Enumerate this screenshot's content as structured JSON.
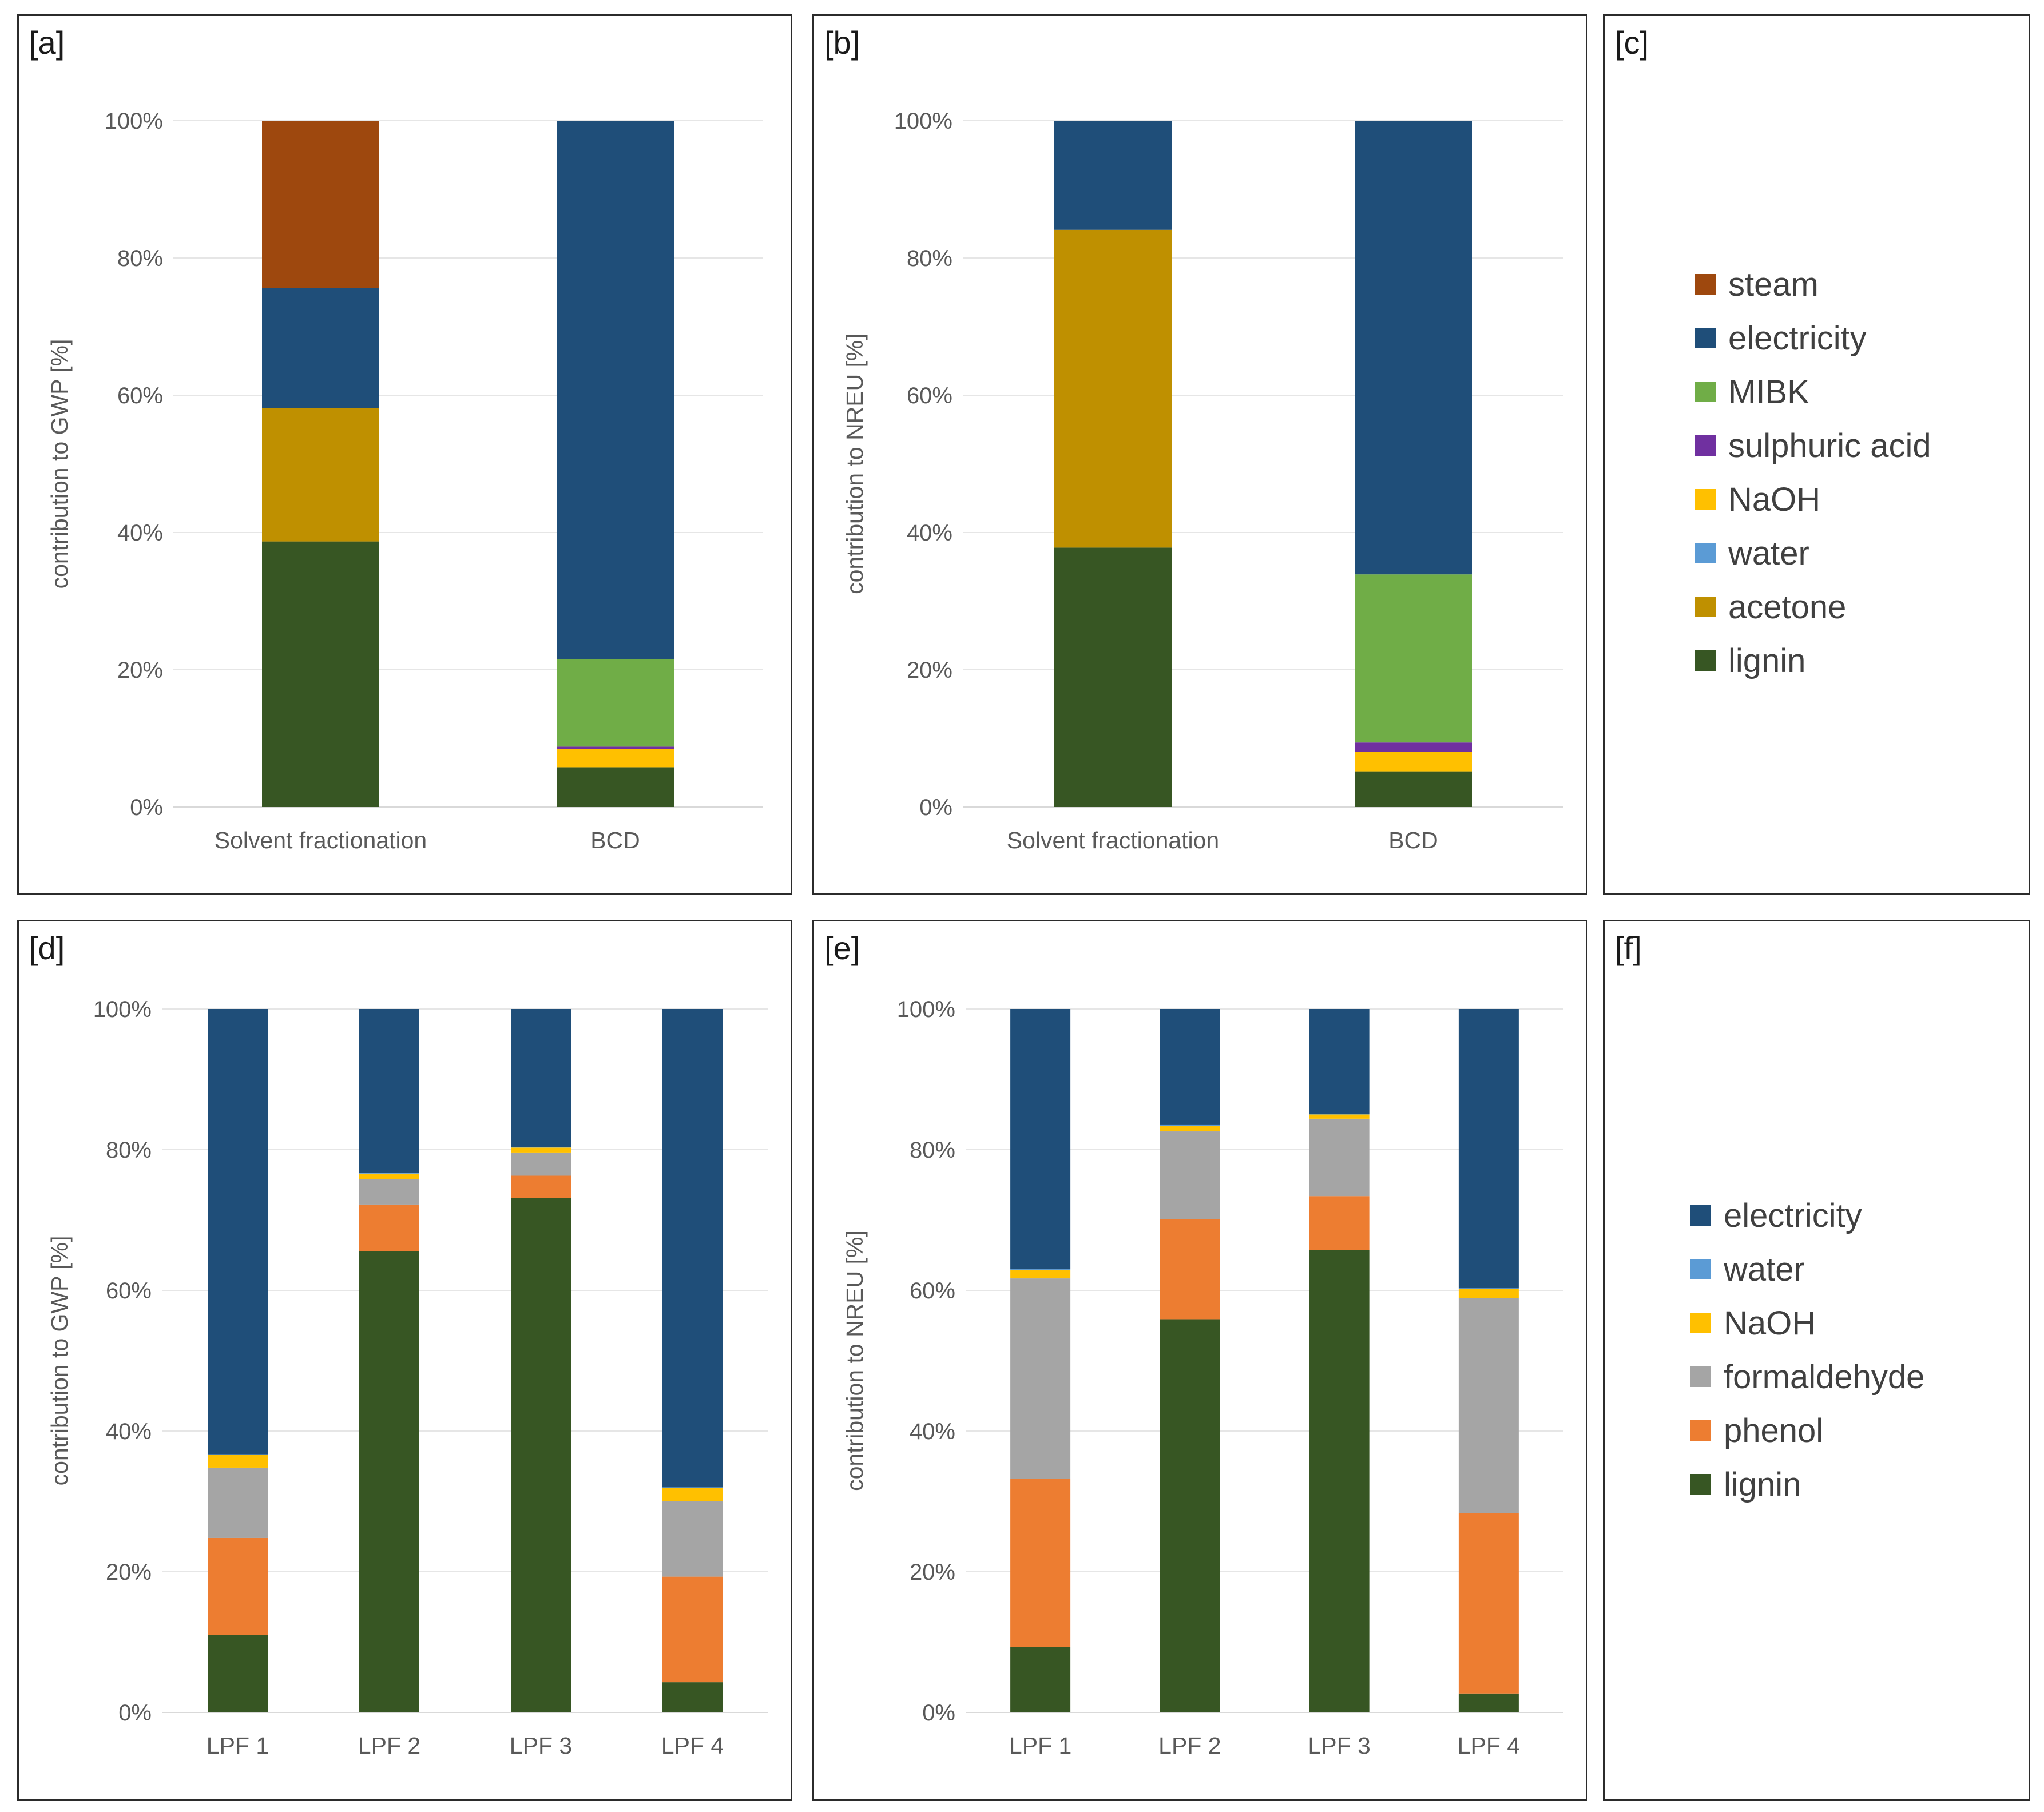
{
  "colors": {
    "steam": "#9e480e",
    "electricity": "#1f4e79",
    "MIBK": "#70ad47",
    "sulphuric acid": "#7030a0",
    "NaOH": "#ffc000",
    "water": "#5b9bd5",
    "acetone": "#bf9000",
    "lignin": "#375623",
    "formaldehyde": "#a5a5a5",
    "phenol": "#ed7d31"
  },
  "panels": {
    "a": {
      "label": "[a]"
    },
    "b": {
      "label": "[b]"
    },
    "c": {
      "label": "[c]",
      "legend": [
        "steam",
        "electricity",
        "MIBK",
        "sulphuric acid",
        "NaOH",
        "water",
        "acetone",
        "lignin"
      ]
    },
    "d": {
      "label": "[d]"
    },
    "e": {
      "label": "[e]"
    },
    "f": {
      "label": "[f]",
      "legend": [
        "electricity",
        "water",
        "NaOH",
        "formaldehyde",
        "phenol",
        "lignin"
      ]
    }
  },
  "chart_data": [
    {
      "id": "a",
      "type": "bar",
      "stacked": true,
      "title": "",
      "ylabel": "contribution to GWP [%]",
      "ylim": [
        0,
        100
      ],
      "yticks": [
        "0%",
        "20%",
        "40%",
        "60%",
        "80%",
        "100%"
      ],
      "categories": [
        "Solvent fractionation",
        "BCD"
      ],
      "series": [
        {
          "name": "lignin",
          "values": [
            38.7,
            5.8
          ]
        },
        {
          "name": "acetone",
          "values": [
            19.4,
            0
          ]
        },
        {
          "name": "water",
          "values": [
            0,
            0
          ]
        },
        {
          "name": "NaOH",
          "values": [
            0,
            2.7
          ]
        },
        {
          "name": "sulphuric acid",
          "values": [
            0,
            0.3
          ]
        },
        {
          "name": "MIBK",
          "values": [
            0,
            12.7
          ]
        },
        {
          "name": "electricity",
          "values": [
            17.5,
            78.5
          ]
        },
        {
          "name": "steam",
          "values": [
            24.4,
            0
          ]
        }
      ]
    },
    {
      "id": "b",
      "type": "bar",
      "stacked": true,
      "title": "",
      "ylabel": "contribution to NREU [%]",
      "ylim": [
        0,
        100
      ],
      "yticks": [
        "0%",
        "20%",
        "40%",
        "60%",
        "80%",
        "100%"
      ],
      "categories": [
        "Solvent fractionation",
        "BCD"
      ],
      "series": [
        {
          "name": "lignin",
          "values": [
            37.8,
            5.2
          ]
        },
        {
          "name": "acetone",
          "values": [
            46.3,
            0
          ]
        },
        {
          "name": "water",
          "values": [
            0,
            0
          ]
        },
        {
          "name": "NaOH",
          "values": [
            0,
            2.8
          ]
        },
        {
          "name": "sulphuric acid",
          "values": [
            0,
            1.4
          ]
        },
        {
          "name": "MIBK",
          "values": [
            0,
            24.5
          ]
        },
        {
          "name": "electricity",
          "values": [
            15.9,
            66.1
          ]
        },
        {
          "name": "steam",
          "values": [
            0,
            0
          ]
        }
      ]
    },
    {
      "id": "d",
      "type": "bar",
      "stacked": true,
      "title": "",
      "ylabel": "contribution to GWP [%]",
      "ylim": [
        0,
        100
      ],
      "yticks": [
        "0%",
        "20%",
        "40%",
        "60%",
        "80%",
        "100%"
      ],
      "categories": [
        "LPF 1",
        "LPF 2",
        "LPF 3",
        "LPF 4"
      ],
      "series": [
        {
          "name": "lignin",
          "values": [
            11.0,
            65.6,
            73.1,
            4.3
          ]
        },
        {
          "name": "phenol",
          "values": [
            13.8,
            6.6,
            3.2,
            15.0
          ]
        },
        {
          "name": "formaldehyde",
          "values": [
            10.0,
            3.6,
            3.3,
            10.7
          ]
        },
        {
          "name": "NaOH",
          "values": [
            1.8,
            0.8,
            0.7,
            1.9
          ]
        },
        {
          "name": "water",
          "values": [
            0.1,
            0.1,
            0.1,
            0.1
          ]
        },
        {
          "name": "electricity",
          "values": [
            63.3,
            23.3,
            19.6,
            68.0
          ]
        }
      ]
    },
    {
      "id": "e",
      "type": "bar",
      "stacked": true,
      "title": "",
      "ylabel": "contribution to NREU [%]",
      "ylim": [
        0,
        100
      ],
      "yticks": [
        "0%",
        "20%",
        "40%",
        "60%",
        "80%",
        "100%"
      ],
      "categories": [
        "LPF 1",
        "LPF 2",
        "LPF 3",
        "LPF 4"
      ],
      "series": [
        {
          "name": "lignin",
          "values": [
            9.3,
            55.9,
            65.7,
            2.7
          ]
        },
        {
          "name": "phenol",
          "values": [
            23.9,
            14.2,
            7.7,
            25.6
          ]
        },
        {
          "name": "formaldehyde",
          "values": [
            28.5,
            12.5,
            11.0,
            30.6
          ]
        },
        {
          "name": "NaOH",
          "values": [
            1.2,
            0.8,
            0.6,
            1.3
          ]
        },
        {
          "name": "water",
          "values": [
            0.1,
            0.1,
            0.1,
            0.1
          ]
        },
        {
          "name": "electricity",
          "values": [
            37.0,
            16.5,
            14.9,
            39.7
          ]
        }
      ]
    }
  ]
}
